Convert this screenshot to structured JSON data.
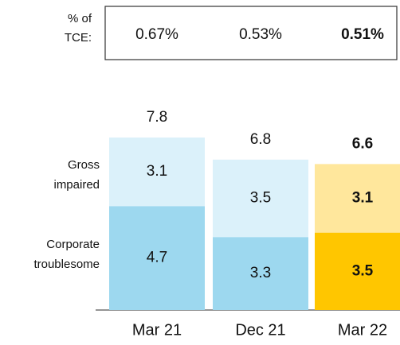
{
  "chart_data": {
    "type": "stacked_bar",
    "tce_label": [
      "% of",
      "TCE:"
    ],
    "tce_values": [
      "0.67%",
      "0.53%",
      "0.51%"
    ],
    "categories": [
      "Mar 21",
      "Dec 21",
      "Mar 22"
    ],
    "series": [
      {
        "name": "Corporate troublesome",
        "colors": [
          "#9dd8ef",
          "#9dd8ef",
          "#ffc600"
        ],
        "values": [
          4.7,
          3.3,
          3.5
        ]
      },
      {
        "name": "Gross impaired",
        "colors": [
          "#dbf1fa",
          "#dbf1fa",
          "#ffe79c"
        ],
        "values": [
          3.1,
          3.5,
          3.1
        ]
      }
    ],
    "totals": [
      7.8,
      6.8,
      6.6
    ],
    "highlight": "Mar 22"
  }
}
